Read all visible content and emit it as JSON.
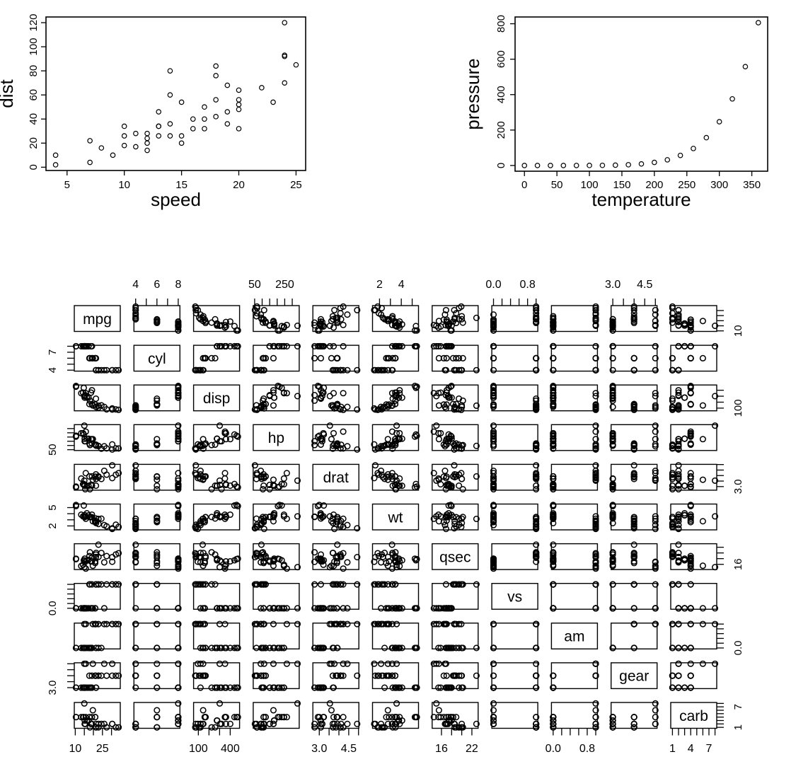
{
  "page": {
    "background": "#ffffff",
    "plot_color": "#000000",
    "point_symbol": "open-circle"
  },
  "chart_data": [
    {
      "id": "cars",
      "type": "scatter",
      "title": "",
      "xlabel": "speed",
      "ylabel": "dist",
      "xlim": [
        4,
        25
      ],
      "ylim": [
        2,
        120
      ],
      "grid": false,
      "x": [
        4,
        4,
        7,
        7,
        8,
        9,
        10,
        10,
        10,
        11,
        11,
        12,
        12,
        12,
        12,
        13,
        13,
        13,
        13,
        14,
        14,
        14,
        14,
        15,
        15,
        15,
        16,
        16,
        17,
        17,
        17,
        18,
        18,
        18,
        18,
        19,
        19,
        19,
        20,
        20,
        20,
        20,
        20,
        22,
        23,
        24,
        24,
        24,
        24,
        25
      ],
      "y": [
        2,
        10,
        4,
        22,
        16,
        10,
        18,
        26,
        34,
        17,
        28,
        14,
        20,
        24,
        28,
        26,
        34,
        34,
        46,
        26,
        36,
        60,
        80,
        20,
        26,
        54,
        32,
        40,
        32,
        40,
        50,
        42,
        56,
        76,
        84,
        36,
        46,
        68,
        32,
        48,
        52,
        56,
        64,
        66,
        54,
        70,
        92,
        93,
        120,
        85
      ],
      "xticks": {
        "values": [
          5,
          10,
          15,
          20,
          25
        ],
        "labels": [
          "5",
          "10",
          "15",
          "20",
          "25"
        ]
      },
      "yticks": {
        "values": [
          0,
          20,
          40,
          60,
          80,
          100,
          120
        ],
        "labels": [
          "0",
          "20",
          "40",
          "60",
          "80",
          "100",
          "120"
        ]
      }
    },
    {
      "id": "pressure",
      "type": "scatter",
      "title": "",
      "xlabel": "temperature",
      "ylabel": "pressure",
      "xlim": [
        0,
        360
      ],
      "ylim": [
        0,
        806
      ],
      "grid": false,
      "x": [
        0,
        20,
        40,
        60,
        80,
        100,
        120,
        140,
        160,
        180,
        200,
        220,
        240,
        260,
        280,
        300,
        320,
        340,
        360
      ],
      "y": [
        0.0002,
        0.0012,
        0.006,
        0.03,
        0.09,
        0.27,
        0.75,
        1.85,
        4.2,
        8.8,
        17.3,
        32.1,
        57,
        96,
        157,
        247,
        376,
        558,
        806
      ],
      "xticks": {
        "values": [
          0,
          50,
          100,
          150,
          200,
          250,
          300,
          350
        ],
        "labels": [
          "0",
          "50",
          "100",
          "150",
          "200",
          "250",
          "300",
          "350"
        ]
      },
      "yticks": {
        "values": [
          0,
          200,
          400,
          600,
          800
        ],
        "labels": [
          "0",
          "200",
          "400",
          "600",
          "800"
        ]
      }
    },
    {
      "id": "mtcars_pairs",
      "type": "scatter_matrix",
      "variables": [
        "mpg",
        "cyl",
        "disp",
        "hp",
        "drat",
        "wt",
        "qsec",
        "vs",
        "am",
        "gear",
        "carb"
      ],
      "observations": {
        "mpg": [
          21,
          21,
          22.8,
          21.4,
          18.7,
          18.1,
          14.3,
          24.4,
          22.8,
          19.2,
          17.8,
          16.4,
          17.3,
          15.2,
          10.4,
          10.4,
          14.7,
          32.4,
          30.4,
          33.9,
          21.5,
          15.5,
          15.2,
          13.3,
          19.2,
          27.3,
          26,
          30.4,
          15.8,
          19.7,
          15,
          21.4
        ],
        "cyl": [
          6,
          6,
          4,
          6,
          8,
          6,
          8,
          4,
          4,
          6,
          6,
          8,
          8,
          8,
          8,
          8,
          8,
          4,
          4,
          4,
          4,
          8,
          8,
          8,
          8,
          4,
          4,
          4,
          8,
          6,
          8,
          4
        ],
        "disp": [
          160,
          160,
          108,
          258,
          360,
          225,
          360,
          146.7,
          140.8,
          167.6,
          167.6,
          275.8,
          275.8,
          275.8,
          472,
          460,
          440,
          78.7,
          75.7,
          71.1,
          120.1,
          318,
          304,
          350,
          400,
          79,
          120.3,
          95.1,
          351,
          145,
          301,
          121
        ],
        "hp": [
          110,
          110,
          93,
          110,
          175,
          105,
          245,
          62,
          95,
          123,
          123,
          180,
          180,
          180,
          205,
          215,
          230,
          66,
          52,
          65,
          97,
          150,
          150,
          245,
          175,
          66,
          91,
          113,
          264,
          175,
          335,
          109
        ],
        "drat": [
          3.9,
          3.9,
          3.85,
          3.08,
          3.15,
          2.76,
          3.21,
          3.69,
          3.92,
          3.92,
          3.92,
          3.07,
          3.07,
          3.07,
          2.93,
          3,
          3.23,
          4.08,
          4.93,
          4.22,
          3.7,
          2.76,
          3.15,
          3.73,
          3.08,
          4.08,
          4.43,
          3.77,
          4.22,
          3.62,
          3.54,
          4.11
        ],
        "wt": [
          2.62,
          2.875,
          2.32,
          3.215,
          3.44,
          3.46,
          3.57,
          3.19,
          3.15,
          3.44,
          3.44,
          4.07,
          3.73,
          3.78,
          5.25,
          5.424,
          5.345,
          2.2,
          1.615,
          1.835,
          2.465,
          3.52,
          3.435,
          3.84,
          3.845,
          1.935,
          2.14,
          1.513,
          3.17,
          2.77,
          3.57,
          2.78
        ],
        "qsec": [
          16.46,
          17.02,
          18.61,
          19.44,
          17.02,
          20.22,
          15.84,
          20,
          22.9,
          18.3,
          18.9,
          17.4,
          17.6,
          18,
          17.98,
          17.82,
          17.42,
          19.47,
          18.52,
          19.9,
          20.01,
          16.87,
          17.3,
          15.41,
          17.05,
          18.9,
          16.7,
          16.9,
          14.5,
          15.5,
          15,
          18.6
        ],
        "vs": [
          0,
          0,
          1,
          1,
          0,
          1,
          0,
          1,
          1,
          1,
          1,
          0,
          0,
          0,
          0,
          0,
          0,
          1,
          1,
          1,
          1,
          0,
          0,
          0,
          0,
          1,
          0,
          1,
          0,
          0,
          0,
          1
        ],
        "am": [
          1,
          1,
          1,
          0,
          0,
          0,
          0,
          0,
          0,
          0,
          0,
          0,
          0,
          0,
          0,
          0,
          0,
          1,
          1,
          1,
          0,
          0,
          0,
          0,
          0,
          1,
          1,
          1,
          1,
          1,
          1,
          1
        ],
        "gear": [
          4,
          4,
          4,
          3,
          3,
          3,
          3,
          4,
          4,
          4,
          4,
          3,
          3,
          3,
          3,
          3,
          3,
          4,
          4,
          4,
          3,
          3,
          3,
          3,
          3,
          4,
          5,
          5,
          5,
          5,
          5,
          4
        ],
        "carb": [
          4,
          4,
          1,
          1,
          2,
          1,
          4,
          2,
          2,
          4,
          4,
          3,
          3,
          3,
          4,
          4,
          4,
          1,
          2,
          1,
          1,
          2,
          2,
          4,
          2,
          1,
          2,
          2,
          4,
          6,
          8,
          2
        ]
      },
      "axes": {
        "mpg": {
          "ticks": [
            10,
            15,
            20,
            25,
            30
          ],
          "edge_labels": [
            {
              "v": 10,
              "t": "10"
            },
            {
              "v": 25,
              "t": "25"
            }
          ],
          "side_labels": [
            {
              "v": 10,
              "t": "10"
            }
          ]
        },
        "cyl": {
          "ticks": [
            4,
            5,
            6,
            7,
            8
          ],
          "edge_labels": [
            {
              "v": 4,
              "t": "4"
            },
            {
              "v": 6,
              "t": "6"
            },
            {
              "v": 8,
              "t": "8"
            }
          ],
          "side_labels": [
            {
              "v": 4,
              "t": "4"
            },
            {
              "v": 7,
              "t": "7"
            }
          ]
        },
        "disp": {
          "ticks": [
            100,
            200,
            300,
            400
          ],
          "edge_labels": [
            {
              "v": 100,
              "t": "100"
            },
            {
              "v": 400,
              "t": "400"
            }
          ],
          "side_labels": [
            {
              "v": 100,
              "t": "100"
            }
          ]
        },
        "hp": {
          "ticks": [
            50,
            100,
            150,
            200,
            250,
            300
          ],
          "edge_labels": [
            {
              "v": 50,
              "t": "50"
            },
            {
              "v": 250,
              "t": "250"
            }
          ],
          "side_labels": [
            {
              "v": 50,
              "t": "50"
            }
          ]
        },
        "drat": {
          "ticks": [
            3,
            3.5,
            4,
            4.5,
            5
          ],
          "edge_labels": [
            {
              "v": 3,
              "t": "3.0"
            },
            {
              "v": 4.5,
              "t": "4.5"
            }
          ],
          "side_labels": [
            {
              "v": 3,
              "t": "3.0"
            }
          ]
        },
        "wt": {
          "ticks": [
            2,
            3,
            4,
            5
          ],
          "edge_labels": [
            {
              "v": 2,
              "t": "2"
            },
            {
              "v": 4,
              "t": "4"
            }
          ],
          "side_labels": [
            {
              "v": 2,
              "t": "2"
            },
            {
              "v": 5,
              "t": "5"
            }
          ]
        },
        "qsec": {
          "ticks": [
            16,
            18,
            20,
            22
          ],
          "edge_labels": [
            {
              "v": 16,
              "t": "16"
            },
            {
              "v": 22,
              "t": "22"
            }
          ],
          "side_labels": [
            {
              "v": 16,
              "t": "16"
            }
          ]
        },
        "vs": {
          "ticks": [
            0,
            0.2,
            0.4,
            0.6,
            0.8,
            1
          ],
          "edge_labels": [
            {
              "v": 0,
              "t": "0.0"
            },
            {
              "v": 0.8,
              "t": "0.8"
            }
          ],
          "side_labels": [
            {
              "v": 0,
              "t": "0.0"
            }
          ]
        },
        "am": {
          "ticks": [
            0,
            0.2,
            0.4,
            0.6,
            0.8,
            1
          ],
          "edge_labels": [
            {
              "v": 0,
              "t": "0.0"
            },
            {
              "v": 0.8,
              "t": "0.8"
            }
          ],
          "side_labels": [
            {
              "v": 0,
              "t": "0.0"
            }
          ]
        },
        "gear": {
          "ticks": [
            3,
            3.5,
            4,
            4.5,
            5
          ],
          "edge_labels": [
            {
              "v": 3,
              "t": "3.0"
            },
            {
              "v": 4.5,
              "t": "4.5"
            }
          ],
          "side_labels": [
            {
              "v": 3,
              "t": "3.0"
            }
          ]
        },
        "carb": {
          "ticks": [
            1,
            2,
            3,
            4,
            5,
            6,
            7,
            8
          ],
          "edge_labels": [
            {
              "v": 1,
              "t": "1"
            },
            {
              "v": 4,
              "t": "4"
            },
            {
              "v": 7,
              "t": "7"
            }
          ],
          "side_labels": [
            {
              "v": 1,
              "t": "1"
            },
            {
              "v": 7,
              "t": "7"
            }
          ]
        }
      }
    }
  ]
}
